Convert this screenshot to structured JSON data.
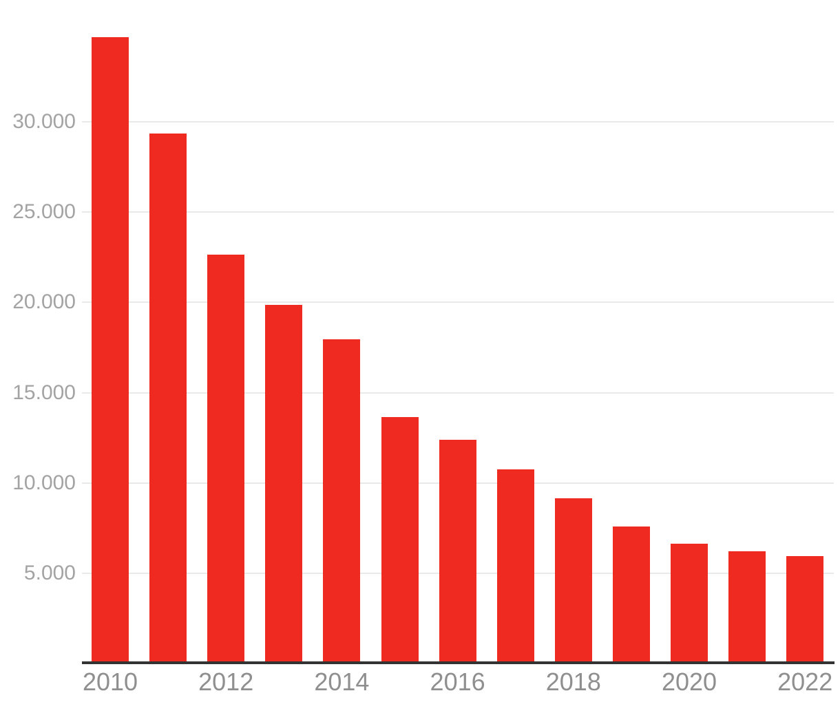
{
  "chart_data": {
    "type": "bar",
    "x": [
      "2010",
      "2011",
      "2012",
      "2013",
      "2014",
      "2015",
      "2016",
      "2017",
      "2018",
      "2019",
      "2020",
      "2021",
      "2022"
    ],
    "values": [
      34700,
      29350,
      22650,
      19850,
      17950,
      13650,
      12400,
      10750,
      9150,
      7600,
      6650,
      6200,
      5950
    ],
    "x_tick_labels": [
      "2010",
      "2012",
      "2014",
      "2016",
      "2018",
      "2020",
      "2022"
    ],
    "y_ticks": [
      {
        "value": 5000,
        "label": "5.000"
      },
      {
        "value": 10000,
        "label": "10.000"
      },
      {
        "value": 15000,
        "label": "15.000"
      },
      {
        "value": 20000,
        "label": "20.000"
      },
      {
        "value": 25000,
        "label": "25.000"
      },
      {
        "value": 30000,
        "label": "30.000"
      }
    ],
    "ylim": [
      0,
      36000
    ],
    "grid": true,
    "legend": false,
    "colors": {
      "bar": "#ee2a21",
      "axis_line": "#333333",
      "gridline": "#e9e9e9",
      "y_tick_text": "#a3a3a3",
      "x_tick_text": "#8f8f8f",
      "background": "#ffffff"
    }
  }
}
